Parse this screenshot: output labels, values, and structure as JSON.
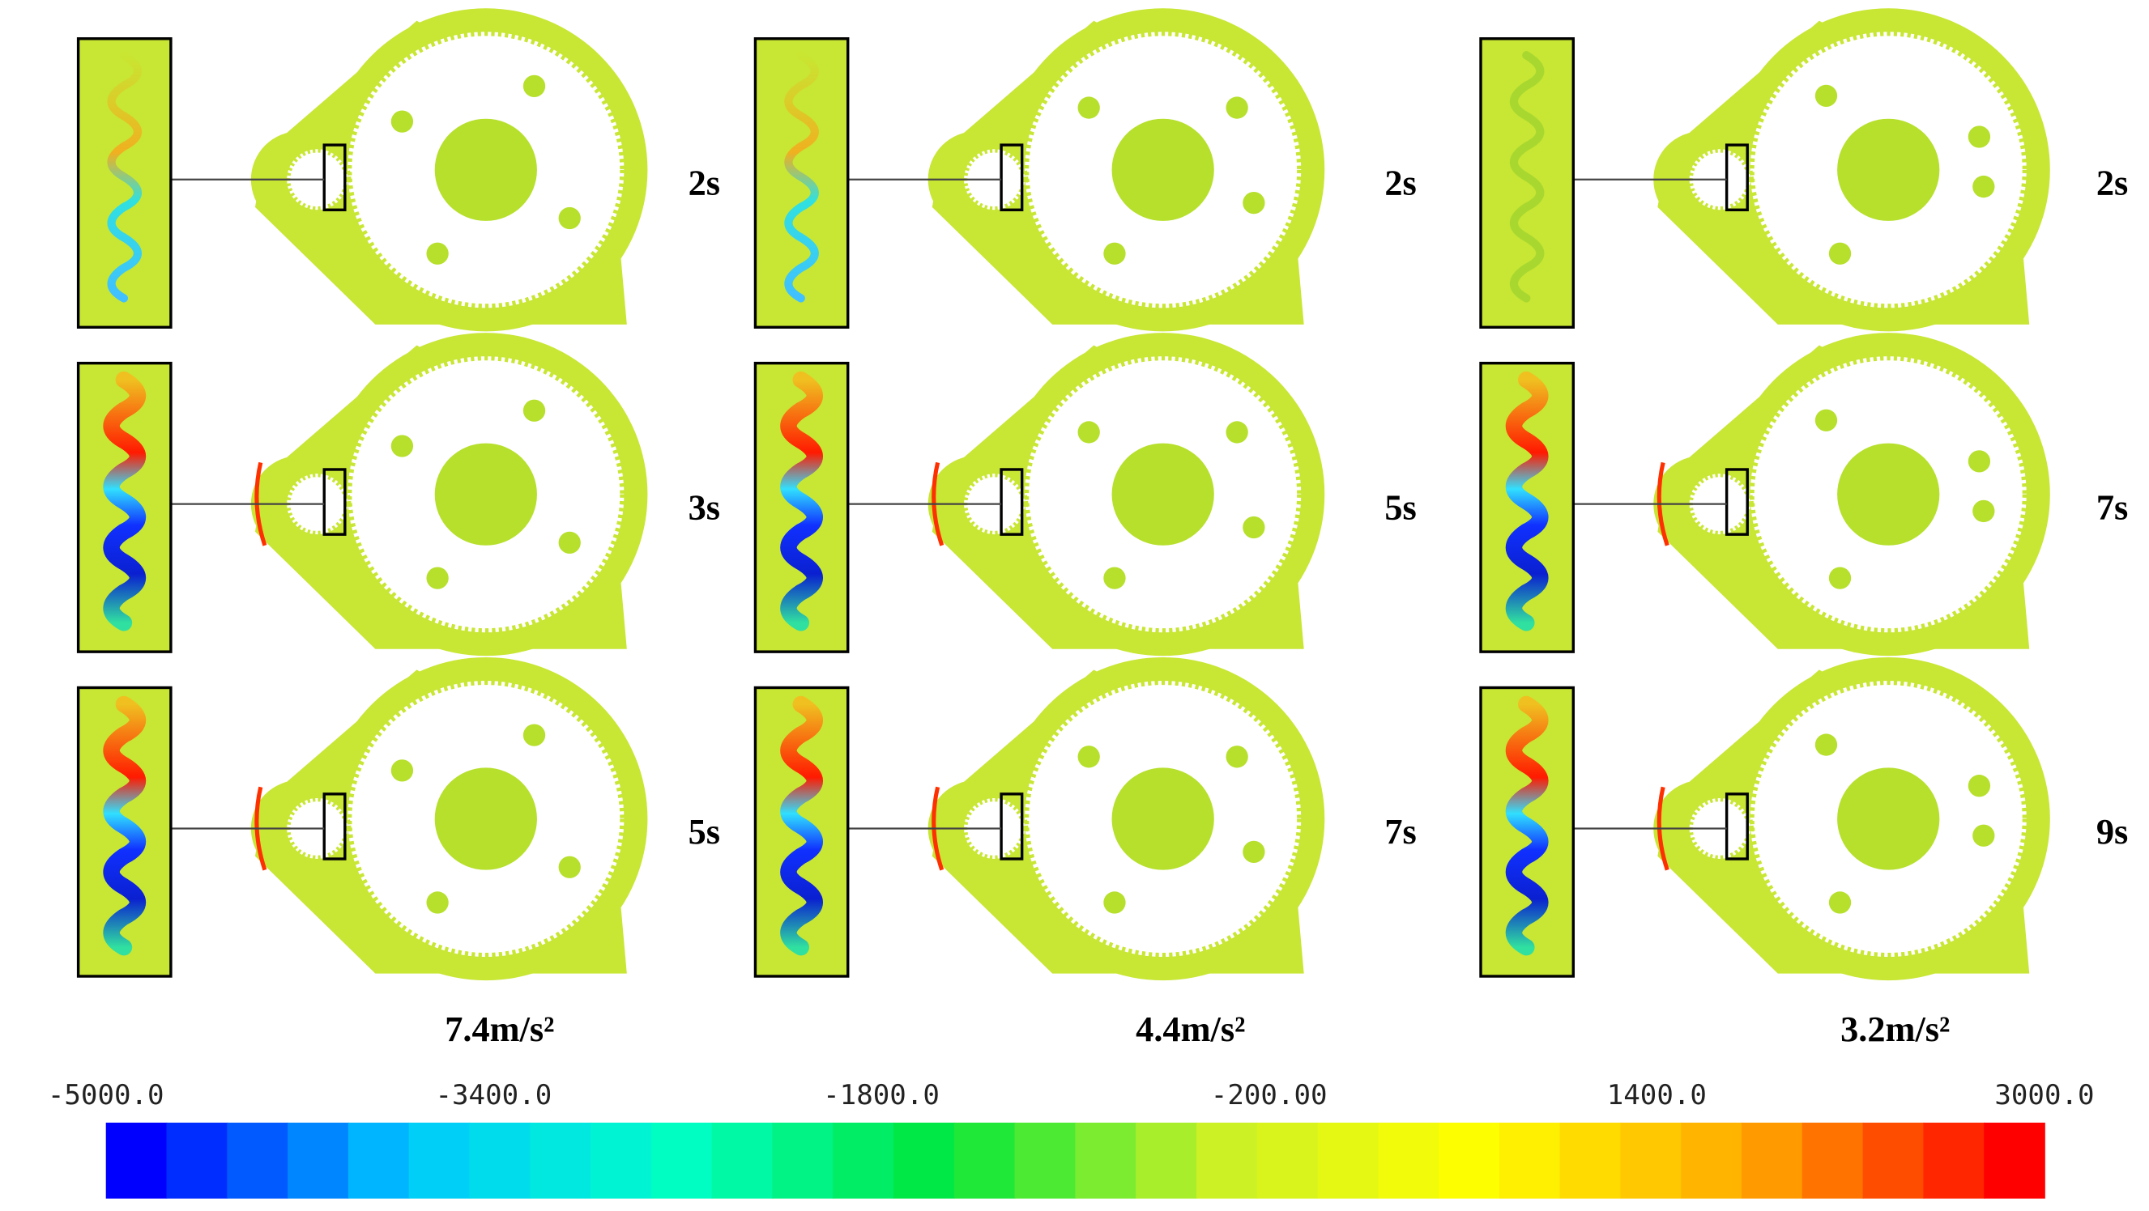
{
  "panels": [
    {
      "time": "2s"
    },
    {
      "time": "2s"
    },
    {
      "time": "2s"
    },
    {
      "time": "3s"
    },
    {
      "time": "5s"
    },
    {
      "time": "7s"
    },
    {
      "time": "5s"
    },
    {
      "time": "7s"
    },
    {
      "time": "9s"
    }
  ],
  "columns": [
    {
      "acceleration": "7.4m/s²"
    },
    {
      "acceleration": "4.4m/s²"
    },
    {
      "acceleration": "3.2m/s²"
    }
  ],
  "colorbar": {
    "ticks": [
      "-5000.0",
      "-3400.0",
      "-1800.0",
      "-200.00",
      "1400.0",
      "3000.0"
    ]
  }
}
